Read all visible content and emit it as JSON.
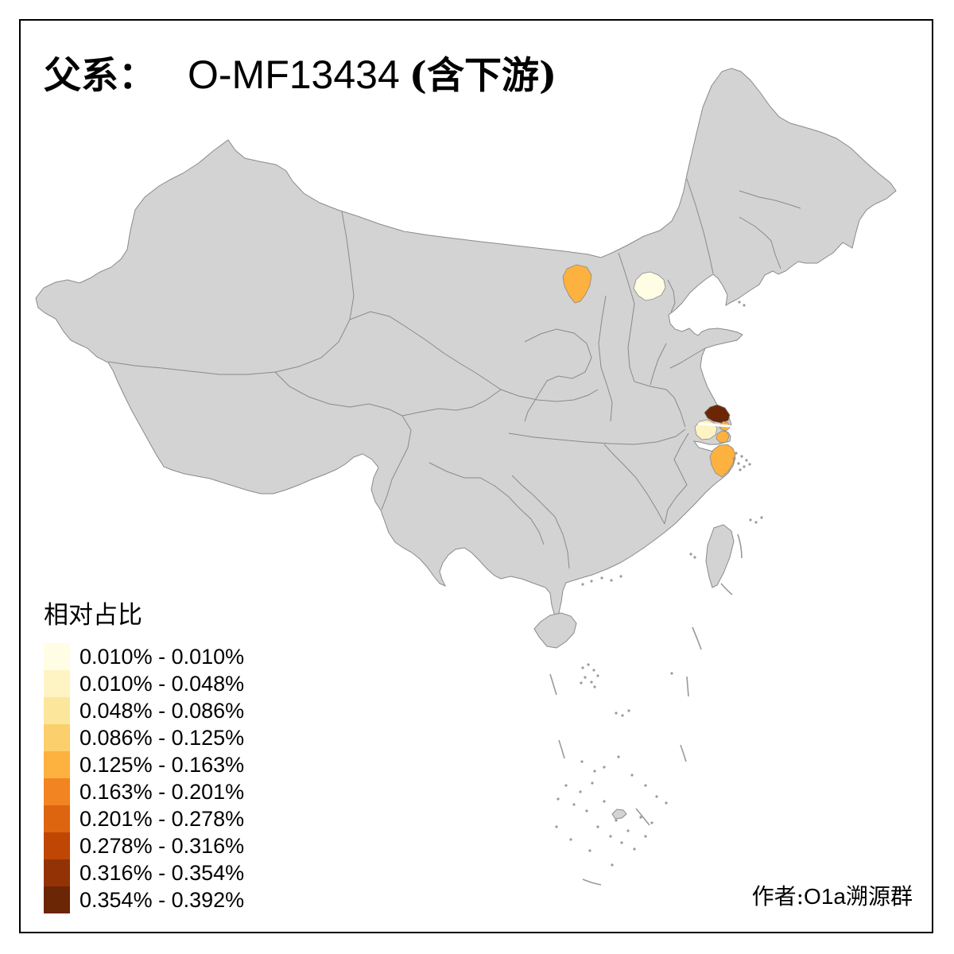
{
  "title": {
    "label_cjk": "父系：",
    "code": "O-MF13434",
    "suffix_cjk": "(含下游)",
    "full": "父系： O-MF13434 (含下游)"
  },
  "legend": {
    "title": "相对占比",
    "items": [
      {
        "label": "0.010% - 0.010%",
        "color": "#FFFDE3"
      },
      {
        "label": "0.010% - 0.048%",
        "color": "#FEF3C3"
      },
      {
        "label": "0.048% - 0.086%",
        "color": "#FCE69C"
      },
      {
        "label": "0.086% - 0.125%",
        "color": "#FBCF6B"
      },
      {
        "label": "0.125% - 0.163%",
        "color": "#FDB13F"
      },
      {
        "label": "0.163% - 0.201%",
        "color": "#F28421"
      },
      {
        "label": "0.201% - 0.278%",
        "color": "#DD650F"
      },
      {
        "label": "0.278% - 0.316%",
        "color": "#C04604"
      },
      {
        "label": "0.316% - 0.354%",
        "color": "#933305"
      },
      {
        "label": "0.354% - 0.392%",
        "color": "#6B2605"
      }
    ]
  },
  "attribution": {
    "prefix_cjk": "作者:",
    "group_latin": "O1a",
    "group_cjk": "溯源群",
    "full": "作者:O1a溯源群"
  },
  "map": {
    "background": "#FFFFFF",
    "land_color": "#D3D3D3",
    "border_color": "#8A8A8A",
    "island_color": "#9A9A9A",
    "regions": [
      {
        "name": "Inner Mongolia central (Baotou area)",
        "bin": "0.125% - 0.163%",
        "color": "#FDB13F"
      },
      {
        "name": "Beijing",
        "bin": "0.010% - 0.010%",
        "color": "#FFFDE3"
      },
      {
        "name": "Nantong, Jiangsu",
        "bin": "0.354% - 0.392%",
        "color": "#6B2605"
      },
      {
        "name": "Suzhou, Jiangsu",
        "bin": "0.010% - 0.048%",
        "color": "#FEF3C3"
      },
      {
        "name": "Shanghai",
        "bin": "0.125% - 0.163%",
        "color": "#FDB13F"
      },
      {
        "name": "Ningbo, Zhejiang",
        "bin": "0.125% - 0.163%",
        "color": "#FDB13F"
      }
    ]
  },
  "chart_data": {
    "type": "choropleth_map",
    "title": "父系： O-MF13434 (含下游)",
    "legend_title": "相对占比",
    "region_scope": "China, prefecture-level highlights on gray basemap",
    "bins": [
      "0.010% - 0.010%",
      "0.010% - 0.048%",
      "0.048% - 0.086%",
      "0.086% - 0.125%",
      "0.125% - 0.163%",
      "0.163% - 0.201%",
      "0.201% - 0.278%",
      "0.278% - 0.316%",
      "0.316% - 0.354%",
      "0.354% - 0.392%"
    ],
    "bin_colors": [
      "#FFFDE3",
      "#FEF3C3",
      "#FCE69C",
      "#FBCF6B",
      "#FDB13F",
      "#F28421",
      "#DD650F",
      "#C04604",
      "#933305",
      "#6B2605"
    ],
    "highlighted_regions": [
      {
        "area": "Inner Mongolia central (Baotou area)",
        "bin": "0.125% - 0.163%"
      },
      {
        "area": "Beijing",
        "bin": "0.010% - 0.010%"
      },
      {
        "area": "Nantong, Jiangsu",
        "bin": "0.354% - 0.392%"
      },
      {
        "area": "Suzhou, Jiangsu",
        "bin": "0.010% - 0.048%"
      },
      {
        "area": "Shanghai",
        "bin": "0.125% - 0.163%"
      },
      {
        "area": "Ningbo, Zhejiang",
        "bin": "0.125% - 0.163%"
      }
    ],
    "attribution": "作者:O1a溯源群"
  }
}
